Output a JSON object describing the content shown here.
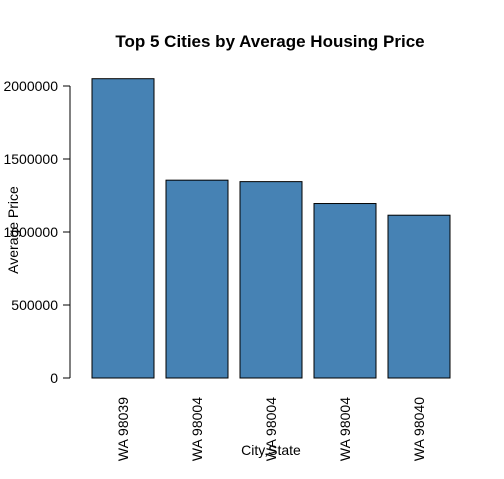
{
  "chart_data": {
    "type": "bar",
    "title": "Top 5 Cities by Average Housing Price",
    "xlabel": "City,State",
    "ylabel": "Average Price",
    "categories": [
      "WA 98039",
      "WA 98004",
      "WA 98004",
      "WA 98004",
      "WA 98040"
    ],
    "values": [
      2050000,
      1355000,
      1345000,
      1195000,
      1115000
    ],
    "yticks": [
      0,
      500000,
      1000000,
      1500000,
      2000000
    ],
    "ytick_labels": [
      "0",
      "500000",
      "1000000",
      "1500000",
      "2000000"
    ],
    "ylim": [
      0,
      2150000
    ],
    "bar_color": "#4682b4",
    "grid": false,
    "legend": "none"
  }
}
